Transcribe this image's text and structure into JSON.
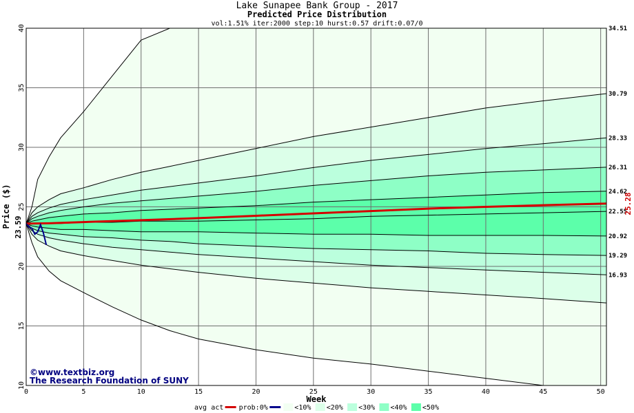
{
  "chart_data": {
    "type": "area",
    "title": "Lake Sunapee Bank Group - 2017",
    "subtitle": "Predicted Price Distribution",
    "params": "vol:1.51% iter:2000 step:10 hurst:0.57 drift:0.07/0",
    "xlabel": "Week",
    "ylabel": "Price ($)",
    "xlim": [
      0,
      50.5
    ],
    "ylim": [
      10,
      40
    ],
    "x_ticks": [
      0,
      5,
      10,
      15,
      20,
      25,
      30,
      35,
      40,
      45,
      50
    ],
    "y_ticks": [
      10,
      15,
      20,
      25,
      30,
      35,
      40
    ],
    "grid": true,
    "start_price_label": "23.59",
    "end_price_label": "25.28",
    "watermark": [
      "©www.textbiz.org",
      "The Research Foundation of SUNY"
    ],
    "legend": {
      "placement": "bottom-center",
      "items": [
        {
          "label": "avg",
          "kind": "none"
        },
        {
          "label": "act",
          "kind": "line",
          "color": "#d40000"
        },
        {
          "label": "prob:0%",
          "kind": "line",
          "color": "#00008b"
        },
        {
          "label": "<10%",
          "kind": "swatch",
          "color": "#f2fff2"
        },
        {
          "label": "<20%",
          "kind": "swatch",
          "color": "#dcffe9"
        },
        {
          "label": "<30%",
          "kind": "swatch",
          "color": "#bbffdd"
        },
        {
          "label": "<40%",
          "kind": "swatch",
          "color": "#8effc6"
        },
        {
          "label": "<50%",
          "kind": "swatch",
          "color": "#5cffaa"
        }
      ]
    },
    "start_value": 23.59,
    "curve_x": [
      0,
      0.5,
      1,
      2,
      3,
      5,
      7.5,
      10,
      12.5,
      15,
      20,
      25,
      30,
      35,
      40,
      45,
      50.5
    ],
    "bands": [
      {
        "name": "outer",
        "color": "#f2fff2",
        "upper": [
          23.59,
          25.0,
          27.3,
          29.2,
          30.8,
          33.0,
          36.0,
          39.0,
          40.0,
          40.0,
          40.0,
          40.0,
          40.0,
          40.0,
          40.0,
          40.0,
          40.0
        ],
        "lower": [
          23.59,
          22.0,
          20.8,
          19.6,
          18.8,
          17.8,
          16.6,
          15.5,
          14.6,
          13.9,
          13.0,
          12.3,
          11.8,
          11.2,
          10.6,
          10.0,
          10.0
        ]
      },
      {
        "name": "<10%",
        "color": "#dcffe9",
        "upper": [
          23.59,
          24.5,
          25.0,
          25.6,
          26.1,
          26.6,
          27.3,
          27.9,
          28.4,
          28.9,
          29.9,
          30.9,
          31.7,
          32.5,
          33.3,
          33.9,
          34.51
        ],
        "lower": [
          23.59,
          22.7,
          22.2,
          21.7,
          21.3,
          20.9,
          20.5,
          20.1,
          19.8,
          19.5,
          19.0,
          18.6,
          18.2,
          17.9,
          17.6,
          17.3,
          16.93
        ]
      },
      {
        "name": "<20%",
        "color": "#bbffdd",
        "upper": [
          23.59,
          24.2,
          24.5,
          24.9,
          25.2,
          25.6,
          26.0,
          26.4,
          26.7,
          27.0,
          27.6,
          28.3,
          28.9,
          29.4,
          29.9,
          30.3,
          30.79
        ],
        "lower": [
          23.59,
          23.0,
          22.7,
          22.4,
          22.2,
          21.9,
          21.6,
          21.4,
          21.2,
          21.0,
          20.7,
          20.4,
          20.1,
          19.9,
          19.7,
          19.5,
          19.29
        ]
      },
      {
        "name": "<30%",
        "color": "#8effc6",
        "upper": [
          23.59,
          24.0,
          24.2,
          24.5,
          24.7,
          25.0,
          25.3,
          25.5,
          25.7,
          25.9,
          26.3,
          26.8,
          27.2,
          27.6,
          27.9,
          28.1,
          28.33
        ],
        "lower": [
          23.59,
          23.2,
          23.0,
          22.8,
          22.7,
          22.5,
          22.4,
          22.2,
          22.1,
          21.9,
          21.7,
          21.5,
          21.4,
          21.3,
          21.1,
          21.0,
          20.92
        ]
      },
      {
        "name": "<40%",
        "color": "#5cffaa",
        "upper": [
          23.59,
          23.8,
          23.9,
          24.1,
          24.2,
          24.4,
          24.5,
          24.7,
          24.8,
          24.9,
          25.1,
          25.4,
          25.6,
          25.8,
          26.0,
          26.2,
          26.31
        ],
        "lower": [
          23.59,
          23.4,
          23.3,
          23.2,
          23.1,
          23.1,
          23.0,
          22.9,
          22.9,
          22.9,
          22.8,
          22.7,
          22.7,
          22.6,
          22.6,
          22.6,
          22.55
        ]
      }
    ],
    "median": [
      23.59,
      23.6,
      23.6,
      23.6,
      23.6,
      23.7,
      23.7,
      23.8,
      23.8,
      23.8,
      23.9,
      24.0,
      24.2,
      24.3,
      24.4,
      24.5,
      24.62
    ],
    "right_labels": [
      "34.51",
      "30.79",
      "28.33",
      "26.31",
      "24.62",
      "22.55",
      "20.92",
      "19.29",
      "16.93"
    ],
    "avg_line": {
      "x": [
        0,
        2,
        5,
        10,
        15,
        20,
        25,
        30,
        35,
        40,
        45,
        50.5
      ],
      "y": [
        23.59,
        23.62,
        23.72,
        23.88,
        24.05,
        24.25,
        24.45,
        24.65,
        24.85,
        25.0,
        25.14,
        25.28
      ],
      "color": "#d40000"
    },
    "act_line": {
      "x": [
        0,
        0.25,
        0.5,
        0.75,
        1.0,
        1.25,
        1.5,
        1.75
      ],
      "y": [
        23.59,
        23.3,
        23.2,
        22.7,
        22.9,
        23.5,
        22.8,
        21.8
      ],
      "color": "#00008b"
    }
  }
}
